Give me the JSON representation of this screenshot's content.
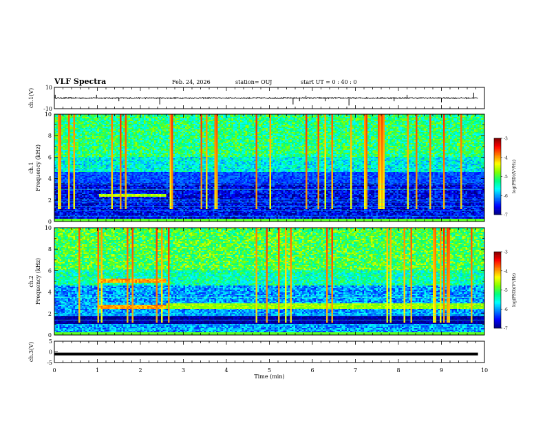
{
  "header": {
    "title": "VLF Spectra",
    "date": "Feb. 24, 2026",
    "station": "station= OUJ",
    "start": "start  UT =   0  : 40 : 0"
  },
  "colors": {
    "colormap": [
      "#00007f",
      "#0000ff",
      "#0080ff",
      "#00ffff",
      "#00ff80",
      "#80ff00",
      "#ffff00",
      "#ff8000",
      "#ff0000",
      "#7f0000"
    ]
  },
  "chart_data": [
    {
      "type": "line",
      "id": "ch1-waveform",
      "ylabel": "ch.1(V)",
      "ylim": [
        -10,
        10
      ],
      "yticks": [
        "10",
        "-10"
      ],
      "xlim": [
        0,
        10
      ],
      "baseline": 0,
      "noise_amplitude": 1.2,
      "spikes": [
        {
          "x": 0.02,
          "y": 3
        },
        {
          "x": 0.98,
          "y": 3
        },
        {
          "x": 1.5,
          "y": -3
        },
        {
          "x": 2.45,
          "y": -6
        },
        {
          "x": 5.55,
          "y": -6
        },
        {
          "x": 5.7,
          "y": -3
        },
        {
          "x": 5.85,
          "y": 2
        },
        {
          "x": 6.3,
          "y": -3
        },
        {
          "x": 6.85,
          "y": -7
        },
        {
          "x": 7.9,
          "y": -3
        },
        {
          "x": 8.2,
          "y": 3
        },
        {
          "x": 9.0,
          "y": -4
        },
        {
          "x": 9.75,
          "y": 5
        }
      ]
    },
    {
      "type": "heatmap",
      "id": "ch1-spectrogram",
      "ylabel": "ch.1\nFrequency (kHz)",
      "ylabel_line1": "ch.1",
      "ylabel_line2": "Frequency (kHz)",
      "ylim": [
        0,
        10
      ],
      "xlim": [
        0,
        10
      ],
      "yticks": [
        "0",
        "2",
        "4",
        "6",
        "8",
        "10"
      ],
      "colorbar": {
        "label": "log(PSD)(V²/Hz)",
        "range": [
          -7,
          -3
        ],
        "ticks": [
          "-3",
          "-4",
          "-5",
          "-6",
          "-7"
        ]
      },
      "bands": [
        {
          "f_low": 2.3,
          "f_high": 2.6,
          "t_start": 1.05,
          "t_end": 2.6,
          "level": -4.6
        },
        {
          "f_low": 3.6,
          "f_high": 4.6,
          "t_start": 0,
          "t_end": 10,
          "level": -6.3
        }
      ],
      "background_level_high": -5.2,
      "background_level_low": -6.6
    },
    {
      "type": "heatmap",
      "id": "ch2-spectrogram",
      "ylabel": "ch.2\nFrequency (kHz)",
      "ylabel_line1": "ch.2",
      "ylabel_line2": "Frequency (kHz)",
      "ylim": [
        0,
        10
      ],
      "xlim": [
        0,
        10
      ],
      "yticks": [
        "0",
        "2",
        "4",
        "6",
        "8",
        "10"
      ],
      "colorbar": {
        "label": "log(PSD)(V²/Hz)",
        "range": [
          -7,
          -3
        ],
        "ticks": [
          "-3",
          "-4",
          "-5",
          "-6",
          "-7"
        ]
      },
      "bands": [
        {
          "f_low": 4.9,
          "f_high": 5.3,
          "t_start": 1.05,
          "t_end": 2.6,
          "level": -4.0
        },
        {
          "f_low": 2.4,
          "f_high": 2.8,
          "t_start": 1.05,
          "t_end": 2.6,
          "level": -4.0
        },
        {
          "f_low": 2.5,
          "f_high": 3.0,
          "t_start": 2.6,
          "t_end": 10,
          "level": -4.7
        },
        {
          "f_low": 1.0,
          "f_high": 1.8,
          "t_start": 0,
          "t_end": 10,
          "level": -6.9
        }
      ],
      "background_level_high": -5.0,
      "background_level_low": -6.0
    },
    {
      "type": "line",
      "id": "ch3-waveform",
      "ylabel": "ch.3(V)",
      "ylim": [
        -5,
        5
      ],
      "yticks": [
        "5",
        "0",
        "-5"
      ],
      "xlim": [
        0,
        10
      ],
      "xlabel": "Time (min)",
      "xticks": [
        "0",
        "1",
        "2",
        "3",
        "4",
        "5",
        "6",
        "7",
        "8",
        "9",
        "10"
      ],
      "baseline": -1
    }
  ]
}
